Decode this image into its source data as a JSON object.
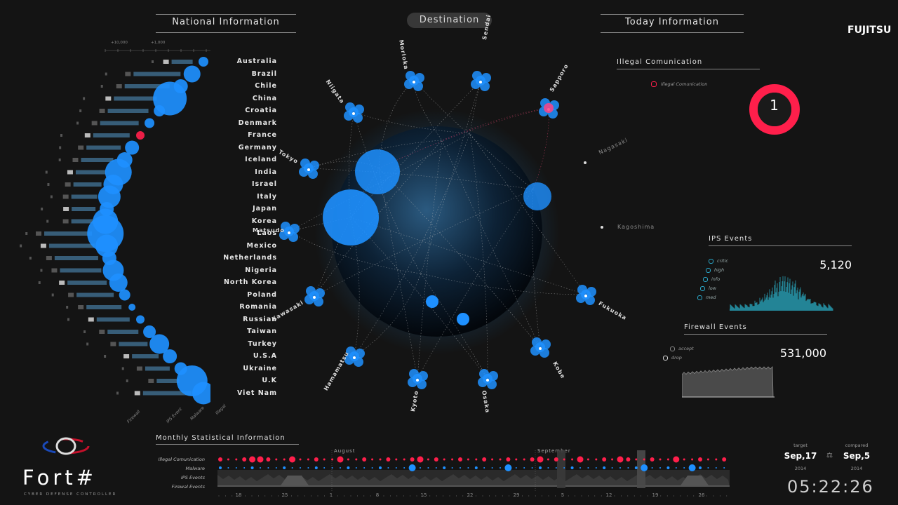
{
  "header": {
    "national_title": "National Information",
    "destination_label": "Destination",
    "today_title": "Today Information",
    "brand": "FUJITSU"
  },
  "national": {
    "scale_labels": [
      "+10,000",
      "+1,000"
    ],
    "countries": [
      "Australia",
      "Brazil",
      "Chile",
      "China",
      "Croatia",
      "Denmark",
      "France",
      "Germany",
      "Iceland",
      "India",
      "Israel",
      "Italy",
      "Japan",
      "Korea",
      "Laos",
      "Mexico",
      "Netherlands",
      "Nigeria",
      "North Korea",
      "Poland",
      "Romania",
      "Russian",
      "Taiwan",
      "Turkey",
      "U.S.A",
      "Ukraine",
      "U.K",
      "Viet Nam"
    ],
    "alert_country": "France",
    "axis_labels": [
      "Firewall",
      "IPS Event",
      "Malware",
      "Illegal"
    ]
  },
  "destination": {
    "cities": [
      "Morioka",
      "Sendai",
      "Sapporo",
      "Niigata",
      "Tokyo",
      "Matsudo",
      "Kawasaki",
      "Hamamatsu",
      "Kyoto",
      "Osaka",
      "Kobe",
      "Fukuoka"
    ],
    "inactive_cities": [
      "Nagasaki",
      "Kagoshima"
    ],
    "alert_city": "Sapporo"
  },
  "today": {
    "illegal": {
      "title": "Illegal Comunication",
      "legend": "Illegal Comunication",
      "value": "1"
    },
    "ips": {
      "title": "IPS Events",
      "value": "5,120",
      "legend": [
        "critic",
        "high",
        "info",
        "low",
        "med"
      ]
    },
    "firewall": {
      "title": "Firewall Events",
      "value": "531,000",
      "legend": [
        "accept",
        "drop"
      ]
    }
  },
  "monthly": {
    "title": "Monthly Statistical Information",
    "rows": [
      "Illegal Comunication",
      "Malware",
      "IPS Events",
      "Firewal Events"
    ],
    "months": [
      "August",
      "September"
    ],
    "ticks": [
      "18",
      "25",
      "1",
      "8",
      "15",
      "22",
      "29",
      "5",
      "12",
      "19",
      "26"
    ]
  },
  "logo": {
    "name": "Fort#",
    "tagline": "CYBER DEFENSE CONTROLLER"
  },
  "dates": {
    "target_label": "target",
    "target_date": "Sep,17",
    "target_year": "2014",
    "compared_label": "compared",
    "compared_date": "Sep,5",
    "compared_year": "2014"
  },
  "clock": "05:22:26",
  "colors": {
    "bubble": "#1e90ff",
    "alert": "#ff1f4b",
    "bar": "#3d6a8a",
    "background": "#141414"
  }
}
